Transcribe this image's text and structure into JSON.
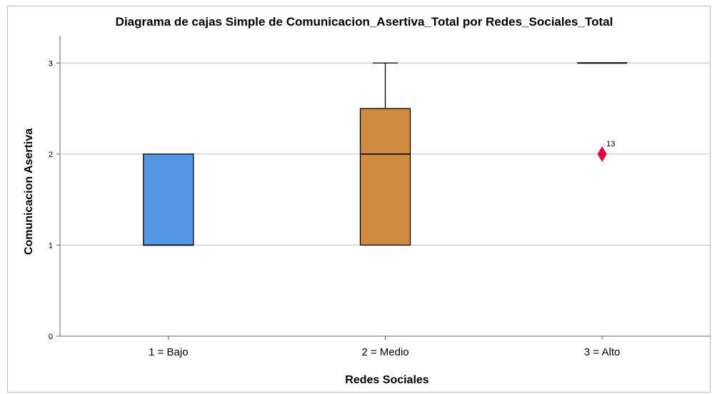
{
  "chart_data": {
    "type": "boxplot",
    "title": "Diagrama de cajas Simple de Comunicacion_Asertiva_Total por Redes_Sociales_Total",
    "xlabel": "Redes Sociales",
    "ylabel": "Comunicacion Asertiva",
    "ylim": [
      0,
      3.3
    ],
    "yticks": [
      0,
      1,
      2,
      3
    ],
    "grid": true,
    "categories": [
      "1 = Bajo",
      "2 = Medio",
      "3 = Alto"
    ],
    "boxes": [
      {
        "category": "1 = Bajo",
        "min": 1,
        "q1": 1,
        "median": 1,
        "q3": 2,
        "max": 2,
        "color": "#5597e5",
        "outliers": []
      },
      {
        "category": "2 = Medio",
        "min": 1,
        "q1": 1,
        "median": 2,
        "q3": 2.5,
        "max": 3,
        "color": "#d08b43",
        "outliers": []
      },
      {
        "category": "3 = Alto",
        "min": 3,
        "q1": 3,
        "median": 3,
        "q3": 3,
        "max": 3,
        "color": "#d08b43",
        "outliers": [
          {
            "value": 2,
            "label": "13"
          }
        ]
      }
    ],
    "outlier_color": "#e0003c"
  }
}
